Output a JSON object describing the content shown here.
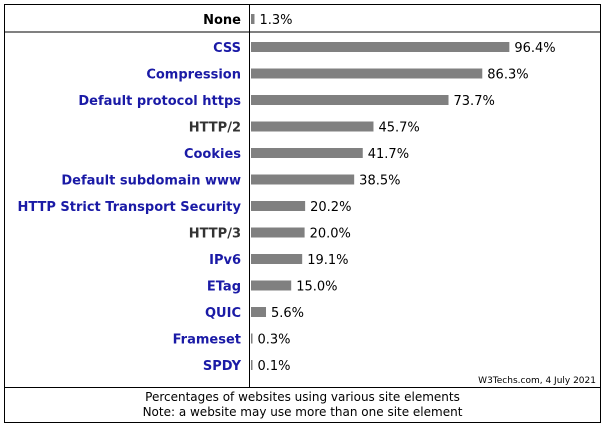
{
  "chart_data": {
    "type": "bar",
    "orientation": "horizontal",
    "separated_first_row": {
      "category": "None",
      "value": 1.3,
      "value_label": "1.3%"
    },
    "categories": [
      "CSS",
      "Compression",
      "Default protocol https",
      "HTTP/2",
      "Cookies",
      "Default subdomain www",
      "HTTP Strict Transport Security",
      "HTTP/3",
      "IPv6",
      "ETag",
      "QUIC",
      "Frameset",
      "SPDY"
    ],
    "values": [
      96.4,
      86.3,
      73.7,
      45.7,
      41.7,
      38.5,
      20.2,
      20.0,
      19.1,
      15.0,
      5.6,
      0.3,
      0.1
    ],
    "value_labels": [
      "96.4%",
      "86.3%",
      "73.7%",
      "45.7%",
      "41.7%",
      "38.5%",
      "20.2%",
      "20.0%",
      "19.1%",
      "15.0%",
      "5.6%",
      "0.3%",
      "0.1%"
    ],
    "label_colors": [
      "#1a1aa6",
      "#1a1aa6",
      "#1a1aa6",
      "#333333",
      "#1a1aa6",
      "#1a1aa6",
      "#1a1aa6",
      "#333333",
      "#1a1aa6",
      "#1a1aa6",
      "#1a1aa6",
      "#1a1aa6",
      "#1a1aa6"
    ],
    "none_label_color": "#000000",
    "bar_color": "#808080",
    "xlim": [
      0,
      100
    ],
    "credit": "W3Techs.com, 4 July 2021"
  },
  "footer": {
    "line1": "Percentages of websites using various site elements",
    "line2": "Note: a website may use more than one site element"
  }
}
